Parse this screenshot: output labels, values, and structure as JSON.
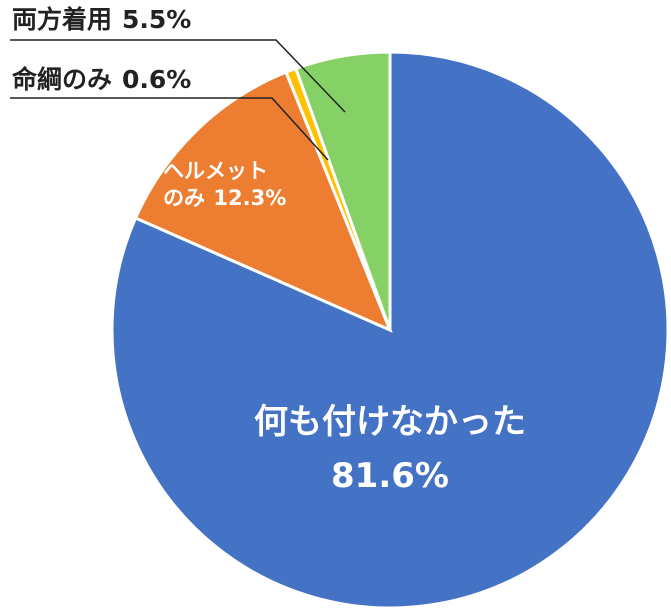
{
  "chart_data": {
    "type": "pie",
    "categories": [
      "何も付けなかった",
      "ヘルメット\nのみ",
      "命綱のみ",
      "両方着用"
    ],
    "values": [
      81.6,
      12.3,
      0.6,
      5.5
    ],
    "value_labels": [
      "81.6%",
      "12.3%",
      "0.6%",
      "5.5%"
    ],
    "colors": [
      "#4472c4",
      "#ed7d31",
      "#ffc000",
      "#86d166"
    ]
  }
}
